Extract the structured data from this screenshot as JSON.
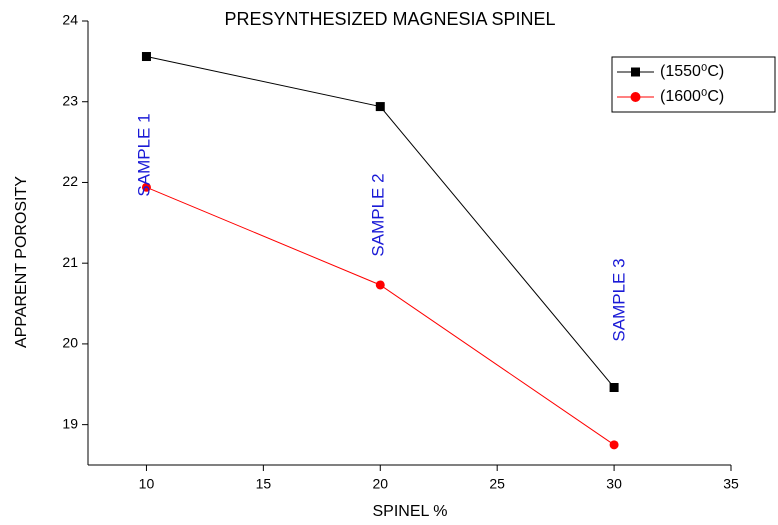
{
  "chart_data": {
    "type": "line",
    "title": "PRESYNTHESIZED MAGNESIA SPINEL",
    "x_label": "SPINEL %",
    "y_label": "APPARENT POROSITY",
    "x": [
      10,
      20,
      30
    ],
    "series": [
      {
        "name": "(1550⁰C)",
        "color": "#000000",
        "marker": "square",
        "values": [
          23.56,
          22.94,
          19.46
        ]
      },
      {
        "name": "(1600⁰C)",
        "color": "#ff0000",
        "marker": "circle",
        "values": [
          21.94,
          20.73,
          18.75
        ]
      }
    ],
    "annotations": [
      "SAMPLE 1",
      "SAMPLE 2",
      "SAMPLE 3"
    ],
    "xlim": [
      7.5,
      35
    ],
    "xticks": [
      10,
      15,
      20,
      25,
      30,
      35
    ],
    "ylim": [
      18.5,
      24
    ],
    "yticks": [
      19,
      20,
      21,
      22,
      23,
      24
    ],
    "legend": "upper right",
    "grid": false
  }
}
